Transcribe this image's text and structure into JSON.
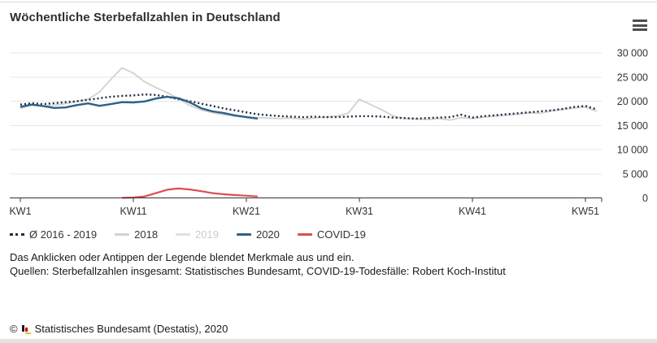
{
  "header": {
    "title": "Wöchentliche Sterbefallzahlen in Deutschland",
    "menu_icon": "hamburger-menu-icon"
  },
  "colors": {
    "title_text": "#2f2f2f",
    "axis": "#333333",
    "grid": "#e7e7e7",
    "tick_text": "#333333",
    "hidden_legend_text": "#cccccc",
    "top_border": "#dcdcdc",
    "bottom_strip": "#e3e3e3",
    "logo_dark": "#1a1a1a",
    "logo_red": "#cc0000",
    "logo_gold": "#e8c11c"
  },
  "chart_data": {
    "type": "line",
    "title": "Wöchentliche Sterbefallzahlen in Deutschland",
    "xlabel": "",
    "ylabel": "",
    "x_range": [
      1,
      52
    ],
    "ylim": [
      0,
      30000
    ],
    "grid": true,
    "legend_position": "bottom-left",
    "x_tick_weeks": [
      1,
      11,
      21,
      31,
      41,
      51
    ],
    "x_tick_labels": [
      "KW1",
      "KW11",
      "KW21",
      "KW31",
      "KW41",
      "KW51"
    ],
    "y_tick_values": [
      0,
      5000,
      10000,
      15000,
      20000,
      25000,
      30000
    ],
    "y_tick_labels": [
      "0",
      "5 000",
      "10 000",
      "15 000",
      "20 000",
      "25 000",
      "30 000"
    ],
    "series": [
      {
        "name": "Ø 2016 - 2019",
        "style": "dotted",
        "color": "#1b2d45",
        "width": 2.4,
        "z": 2,
        "hidden": false,
        "start_week": 1,
        "values": [
          19300,
          19600,
          19400,
          19600,
          19800,
          20000,
          20300,
          20600,
          20900,
          21100,
          21200,
          21400,
          21300,
          20900,
          20400,
          20000,
          19500,
          19000,
          18500,
          18100,
          17700,
          17300,
          17100,
          16900,
          16800,
          16700,
          16800,
          16700,
          16700,
          16800,
          16900,
          16900,
          16800,
          16600,
          16500,
          16400,
          16500,
          16600,
          16700,
          17200,
          16600,
          16900,
          17100,
          17300,
          17500,
          17700,
          17900,
          18100,
          18400,
          18800,
          19000,
          18300
        ]
      },
      {
        "name": "2018",
        "style": "solid",
        "color": "#d2d2d0",
        "width": 1.8,
        "z": 1,
        "hidden": false,
        "start_week": 1,
        "values": [
          18500,
          19200,
          19000,
          19200,
          19500,
          19900,
          20400,
          21900,
          24500,
          26900,
          25800,
          24000,
          22800,
          21800,
          20500,
          19100,
          18200,
          17600,
          17200,
          16900,
          16700,
          16600,
          16500,
          16400,
          16500,
          16300,
          16500,
          16700,
          16900,
          17500,
          20400,
          19300,
          18200,
          16900,
          16400,
          16300,
          16200,
          16400,
          16100,
          16600,
          16400,
          16700,
          16900,
          17100,
          17300,
          17600,
          17500,
          18000,
          18300,
          18600,
          18800,
          17900
        ]
      },
      {
        "name": "2019",
        "style": "solid",
        "color": "#e0e0e0",
        "width": 1.8,
        "z": 1,
        "hidden": true,
        "start_week": 1,
        "values": []
      },
      {
        "name": "2020",
        "style": "solid",
        "color": "#2c6189",
        "width": 2.4,
        "z": 3,
        "hidden": false,
        "start_week": 1,
        "values": [
          18800,
          19300,
          19000,
          18600,
          18700,
          19200,
          19550,
          19050,
          19400,
          19800,
          19750,
          19950,
          20550,
          20900,
          20600,
          19750,
          18550,
          17900,
          17550,
          17050,
          16700,
          16400
        ]
      },
      {
        "name": "COVID-19",
        "style": "solid",
        "color": "#dd4d52",
        "width": 2.2,
        "z": 4,
        "hidden": false,
        "start_week": 10,
        "values": [
          20,
          80,
          300,
          1000,
          1700,
          1950,
          1750,
          1400,
          1000,
          750,
          580,
          450,
          300
        ]
      }
    ]
  },
  "notes": {
    "hint": "Das Anklicken oder Antippen der Legende blendet Merkmale aus und ein.",
    "sources": "Quellen: Sterbefallzahlen insgesamt: Statistisches Bundesamt, COVID-19-Todesfälle: Robert Koch-Institut"
  },
  "footer": {
    "copyright_symbol": "©",
    "copyright_text": "Statistisches Bundesamt (Destatis), 2020",
    "logo_icon": "destatis-bar-chart-logo"
  }
}
